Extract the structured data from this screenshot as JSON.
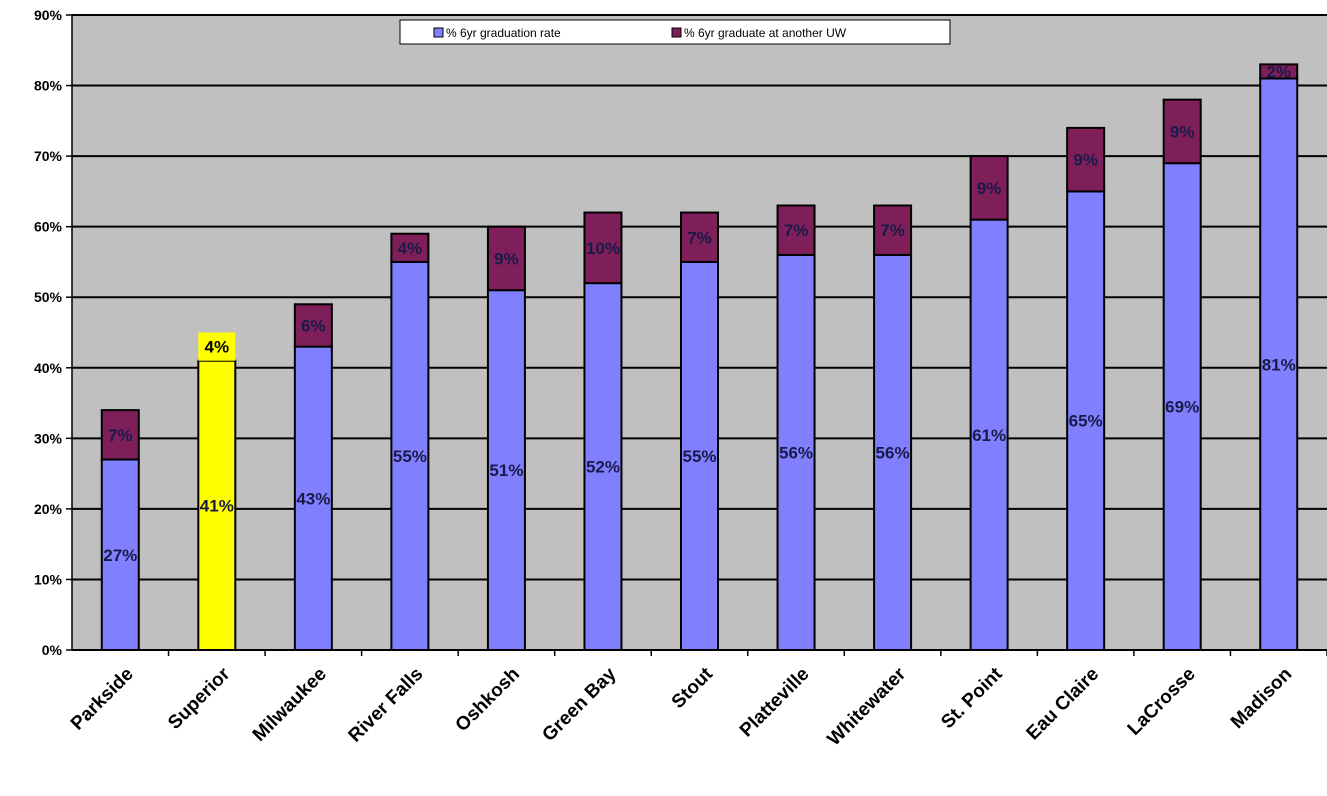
{
  "chart_data": {
    "type": "bar",
    "stacked": true,
    "categories": [
      "Parkside",
      "Superior",
      "Milwaukee",
      "River Falls",
      "Oshkosh",
      "Green Bay",
      "Stout",
      "Platteville",
      "Whitewater",
      "St. Point",
      "Eau Claire",
      "LaCrosse",
      "Madison"
    ],
    "series": [
      {
        "name": "% 6yr graduation rate",
        "values": [
          27,
          41,
          43,
          55,
          51,
          52,
          55,
          56,
          56,
          61,
          65,
          69,
          81
        ],
        "labels": [
          "27%",
          "41%",
          "43%",
          "55%",
          "51%",
          "52%",
          "55%",
          "56%",
          "56%",
          "61%",
          "65%",
          "69%",
          "81%"
        ]
      },
      {
        "name": "% 6yr graduate at another UW",
        "values": [
          7,
          4,
          6,
          4,
          9,
          10,
          7,
          7,
          7,
          9,
          9,
          9,
          2
        ],
        "labels": [
          "7%",
          "4%",
          "6%",
          "4%",
          "9%",
          "10%",
          "7%",
          "7%",
          "7%",
          "9%",
          "9%",
          "9%",
          "2%"
        ]
      }
    ],
    "highlight": {
      "category": "Superior",
      "color": "#ffff00"
    },
    "colors": {
      "primary": "#8080ff",
      "secondary": "#7f1f5a",
      "highlight": "#ffff00",
      "plot_bg": "#c0c0c0"
    },
    "yticks": [
      "0%",
      "10%",
      "20%",
      "30%",
      "40%",
      "50%",
      "60%",
      "70%",
      "80%",
      "90%"
    ],
    "ylim": [
      0,
      90
    ],
    "title": "",
    "xlabel": "",
    "ylabel": "",
    "legend_position": "top",
    "grid": true
  }
}
